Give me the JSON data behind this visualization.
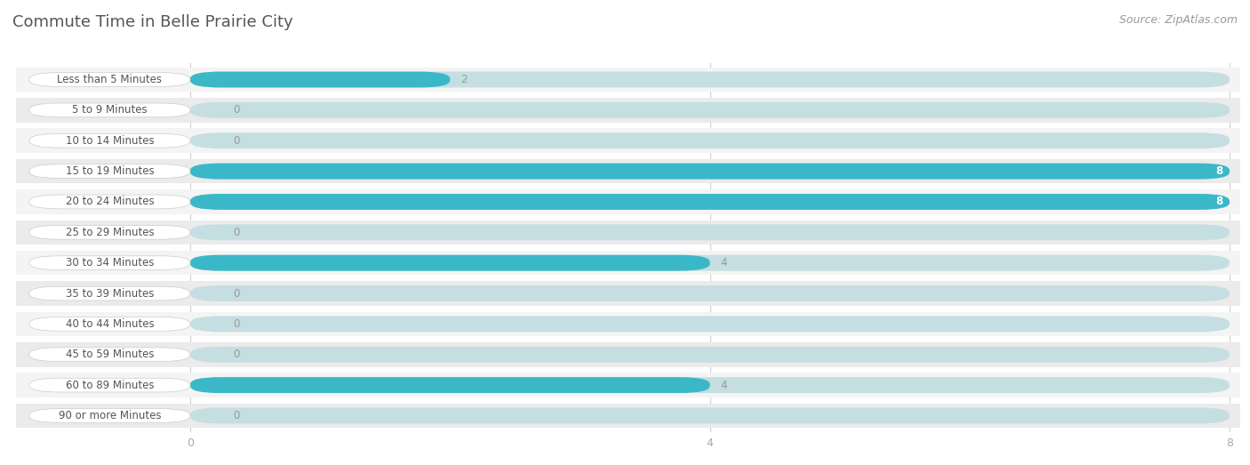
{
  "title": "Commute Time in Belle Prairie City",
  "source": "Source: ZipAtlas.com",
  "categories": [
    "Less than 5 Minutes",
    "5 to 9 Minutes",
    "10 to 14 Minutes",
    "15 to 19 Minutes",
    "20 to 24 Minutes",
    "25 to 29 Minutes",
    "30 to 34 Minutes",
    "35 to 39 Minutes",
    "40 to 44 Minutes",
    "45 to 59 Minutes",
    "60 to 89 Minutes",
    "90 or more Minutes"
  ],
  "values": [
    2,
    0,
    0,
    8,
    8,
    0,
    4,
    0,
    0,
    0,
    4,
    0
  ],
  "xlim_max": 8,
  "xticks": [
    0,
    4,
    8
  ],
  "bar_color_active": "#3BB8C8",
  "bar_color_bg": "#C5DEE2",
  "row_bg_color1": "#F4F4F4",
  "row_bg_color2": "#EBEBEB",
  "label_pill_color": "#FFFFFF",
  "label_pill_border": "#CCCCCC",
  "background_color": "#FFFFFF",
  "title_color": "#555555",
  "source_color": "#999999",
  "label_text_color": "#555555",
  "value_text_color_inside": "#FFFFFF",
  "value_text_color_outside": "#999999",
  "tick_color": "#AAAAAA",
  "grid_color": "#CCCCCC",
  "title_fontsize": 13,
  "source_fontsize": 9,
  "label_fontsize": 8.5,
  "value_fontsize": 8.5,
  "tick_fontsize": 9
}
